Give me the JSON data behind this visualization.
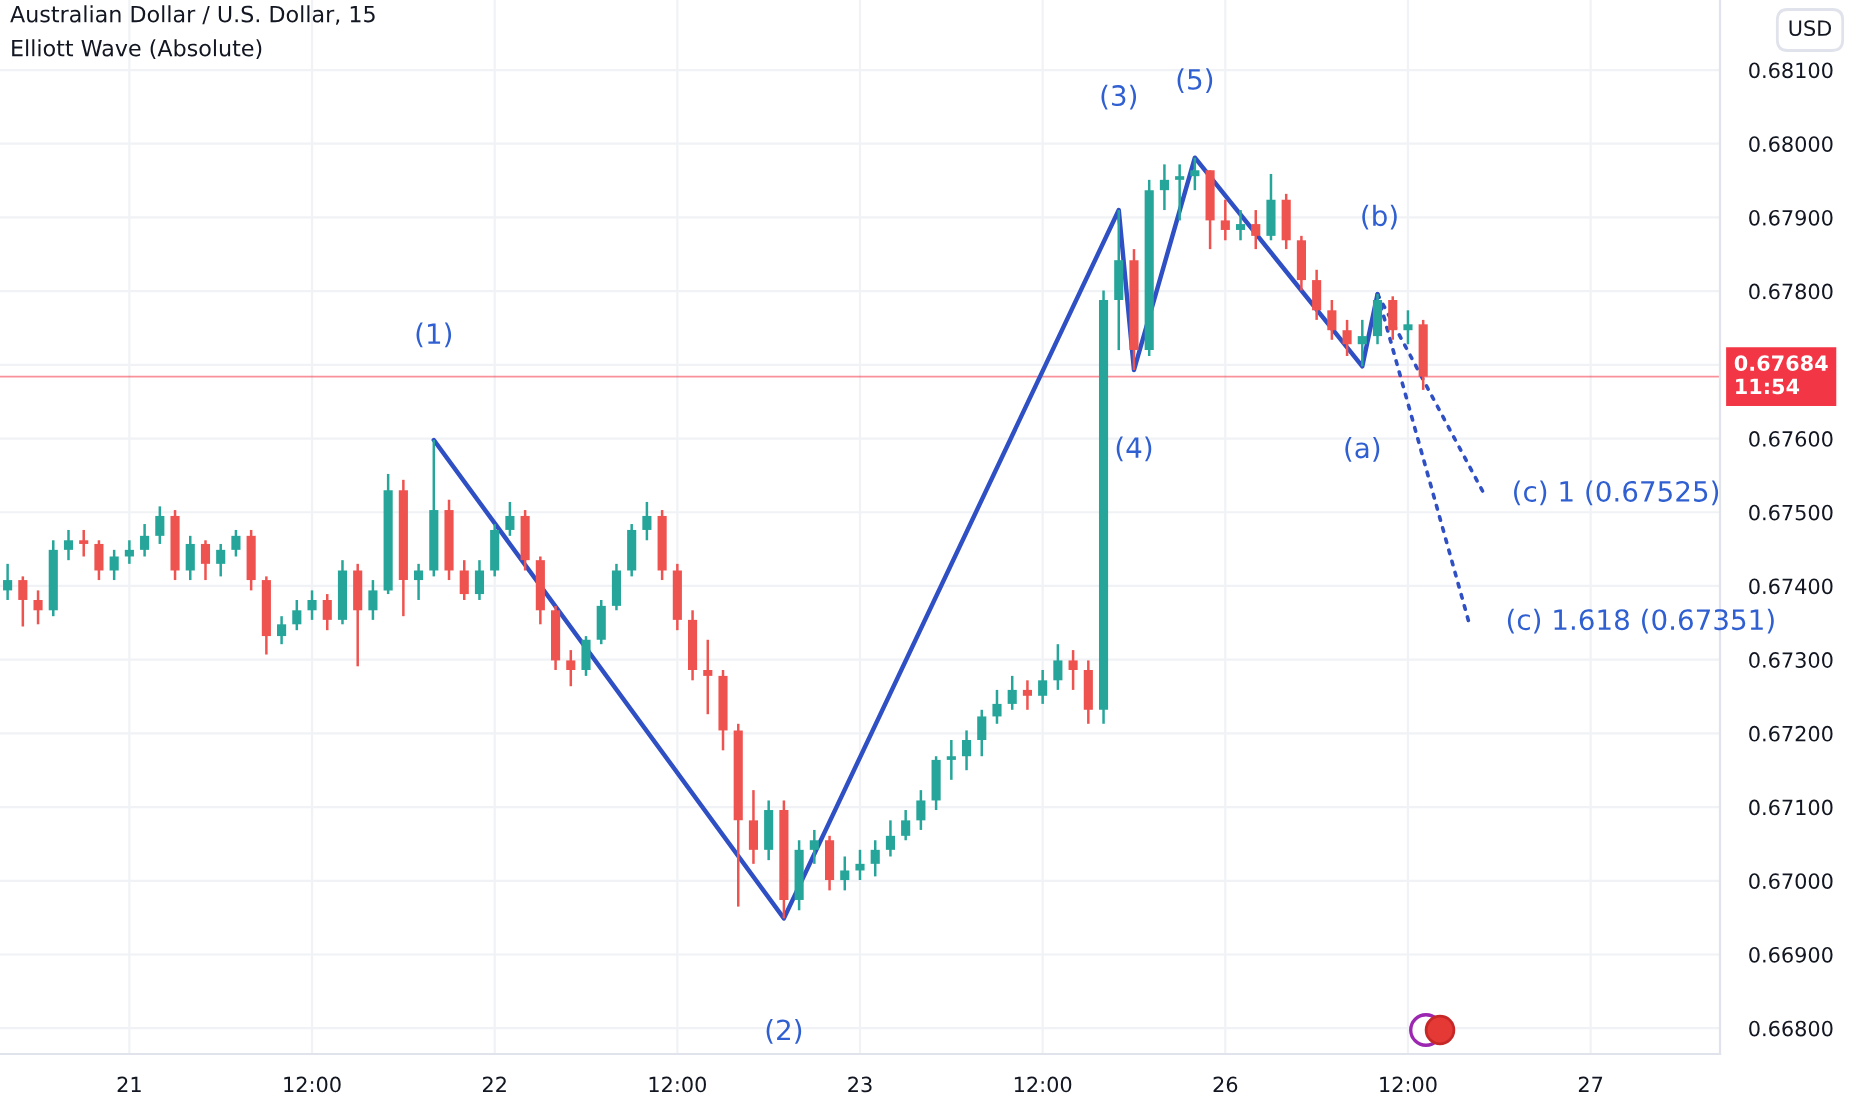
{
  "chart_data": {
    "type": "candlestick",
    "title": "Australian Dollar / U.S. Dollar, 15",
    "subtitle": "Elliott Wave (Absolute)",
    "ylabel": "USD",
    "categories": [
      null,
      null,
      null,
      null,
      null,
      null,
      null,
      null,
      "21",
      null,
      null,
      null,
      null,
      null,
      null,
      null,
      null,
      null,
      null,
      null,
      "12:00",
      null,
      null,
      null,
      null,
      null,
      null,
      null,
      null,
      null,
      null,
      null,
      "22",
      null,
      null,
      null,
      null,
      null,
      null,
      null,
      null,
      null,
      null,
      null,
      "12:00",
      null,
      null,
      null,
      null,
      null,
      null,
      null,
      null,
      null,
      null,
      null,
      "23",
      null,
      null,
      null,
      null,
      null,
      null,
      null,
      null,
      null,
      null,
      null,
      "12:00",
      null,
      null,
      null,
      null,
      null,
      null,
      null,
      null,
      null,
      null,
      null,
      "26",
      null,
      null,
      null,
      null,
      null,
      null,
      null,
      null,
      null,
      null,
      null,
      "12:00",
      null,
      null,
      null,
      null,
      null,
      null,
      null,
      null,
      null,
      null,
      null,
      "27",
      null,
      null,
      null,
      null,
      null,
      null,
      null,
      null
    ],
    "ohlc": [
      [
        0.67394,
        0.6743,
        0.67381,
        0.67408
      ],
      [
        0.67408,
        0.67413,
        0.67345,
        0.67381
      ],
      [
        0.67381,
        0.67394,
        0.67348,
        0.67367
      ],
      [
        0.67367,
        0.67462,
        0.67359,
        0.67449
      ],
      [
        0.67449,
        0.67476,
        0.67435,
        0.67462
      ],
      [
        0.67462,
        0.67476,
        0.6744,
        0.67457
      ],
      [
        0.67457,
        0.67462,
        0.67408,
        0.67421
      ],
      [
        0.67421,
        0.67449,
        0.67408,
        0.6744
      ],
      [
        0.6744,
        0.67462,
        0.6743,
        0.67449
      ],
      [
        0.67449,
        0.67484,
        0.6744,
        0.67468
      ],
      [
        0.67468,
        0.67508,
        0.67457,
        0.67495
      ],
      [
        0.67495,
        0.67503,
        0.67408,
        0.67421
      ],
      [
        0.67421,
        0.67468,
        0.67408,
        0.67457
      ],
      [
        0.67457,
        0.67462,
        0.67408,
        0.6743
      ],
      [
        0.6743,
        0.67457,
        0.67413,
        0.67449
      ],
      [
        0.67449,
        0.67476,
        0.6744,
        0.67468
      ],
      [
        0.67468,
        0.67476,
        0.67394,
        0.67408
      ],
      [
        0.67408,
        0.67413,
        0.67307,
        0.67332
      ],
      [
        0.67332,
        0.67359,
        0.67321,
        0.67348
      ],
      [
        0.67348,
        0.67381,
        0.6734,
        0.67367
      ],
      [
        0.67367,
        0.67394,
        0.67354,
        0.67381
      ],
      [
        0.67381,
        0.67389,
        0.6734,
        0.67354
      ],
      [
        0.67354,
        0.67435,
        0.67348,
        0.67421
      ],
      [
        0.67421,
        0.6743,
        0.67291,
        0.67367
      ],
      [
        0.67367,
        0.67408,
        0.67354,
        0.67394
      ],
      [
        0.67394,
        0.67552,
        0.67389,
        0.6753
      ],
      [
        0.6753,
        0.67544,
        0.67359,
        0.67408
      ],
      [
        0.67408,
        0.6743,
        0.67381,
        0.67421
      ],
      [
        0.67421,
        0.67598,
        0.67413,
        0.67503
      ],
      [
        0.67503,
        0.67517,
        0.67408,
        0.67421
      ],
      [
        0.67421,
        0.67435,
        0.67381,
        0.67389
      ],
      [
        0.67389,
        0.67435,
        0.67381,
        0.67421
      ],
      [
        0.67421,
        0.67484,
        0.67413,
        0.67476
      ],
      [
        0.67476,
        0.67514,
        0.67468,
        0.67495
      ],
      [
        0.67495,
        0.67503,
        0.67421,
        0.67435
      ],
      [
        0.67435,
        0.6744,
        0.67348,
        0.67367
      ],
      [
        0.67367,
        0.67373,
        0.67286,
        0.67299
      ],
      [
        0.67299,
        0.67313,
        0.67264,
        0.67286
      ],
      [
        0.67286,
        0.67332,
        0.67278,
        0.67327
      ],
      [
        0.67327,
        0.67381,
        0.67321,
        0.67373
      ],
      [
        0.67373,
        0.6743,
        0.67367,
        0.67421
      ],
      [
        0.67421,
        0.67484,
        0.67413,
        0.67476
      ],
      [
        0.67476,
        0.67514,
        0.67462,
        0.67495
      ],
      [
        0.67495,
        0.67503,
        0.67408,
        0.67421
      ],
      [
        0.67421,
        0.6743,
        0.6734,
        0.67354
      ],
      [
        0.67354,
        0.67367,
        0.67272,
        0.67286
      ],
      [
        0.67286,
        0.67327,
        0.67226,
        0.67278
      ],
      [
        0.67278,
        0.67286,
        0.67177,
        0.67204
      ],
      [
        0.67204,
        0.67213,
        0.66965,
        0.67082
      ],
      [
        0.67082,
        0.67123,
        0.67023,
        0.67042
      ],
      [
        0.67042,
        0.67109,
        0.67028,
        0.67096
      ],
      [
        0.67096,
        0.67109,
        0.66949,
        0.66974
      ],
      [
        0.66974,
        0.67055,
        0.6696,
        0.67042
      ],
      [
        0.67042,
        0.67069,
        0.67023,
        0.67055
      ],
      [
        0.67055,
        0.67061,
        0.66987,
        0.67001
      ],
      [
        0.67001,
        0.67033,
        0.66987,
        0.67014
      ],
      [
        0.67014,
        0.67042,
        0.67001,
        0.67023
      ],
      [
        0.67023,
        0.67055,
        0.67006,
        0.67042
      ],
      [
        0.67042,
        0.67082,
        0.67033,
        0.67061
      ],
      [
        0.67061,
        0.67096,
        0.67055,
        0.67082
      ],
      [
        0.67082,
        0.67123,
        0.67069,
        0.67109
      ],
      [
        0.67109,
        0.67169,
        0.67096,
        0.67164
      ],
      [
        0.67164,
        0.67191,
        0.67137,
        0.67169
      ],
      [
        0.67169,
        0.67204,
        0.6715,
        0.67191
      ],
      [
        0.67191,
        0.67232,
        0.67169,
        0.67223
      ],
      [
        0.67223,
        0.67259,
        0.67213,
        0.6724
      ],
      [
        0.6724,
        0.67278,
        0.67232,
        0.67259
      ],
      [
        0.67259,
        0.67272,
        0.67232,
        0.67251
      ],
      [
        0.67251,
        0.67286,
        0.6724,
        0.67272
      ],
      [
        0.67272,
        0.67321,
        0.67259,
        0.67299
      ],
      [
        0.67299,
        0.67313,
        0.67259,
        0.67286
      ],
      [
        0.67286,
        0.67299,
        0.67213,
        0.67232
      ],
      [
        0.67232,
        0.67801,
        0.67213,
        0.67788
      ],
      [
        0.67788,
        0.6791,
        0.6772,
        0.67842
      ],
      [
        0.67842,
        0.67857,
        0.67693,
        0.6772
      ],
      [
        0.6772,
        0.67951,
        0.67712,
        0.67937
      ],
      [
        0.67937,
        0.67972,
        0.6791,
        0.67951
      ],
      [
        0.67951,
        0.67972,
        0.67896,
        0.67956
      ],
      [
        0.67956,
        0.67981,
        0.67937,
        0.67964
      ],
      [
        0.67964,
        0.67964,
        0.67857,
        0.67896
      ],
      [
        0.67896,
        0.67924,
        0.67869,
        0.67883
      ],
      [
        0.67883,
        0.6791,
        0.67869,
        0.67891
      ],
      [
        0.67891,
        0.6791,
        0.67857,
        0.67875
      ],
      [
        0.67875,
        0.67959,
        0.67869,
        0.67924
      ],
      [
        0.67924,
        0.67932,
        0.67857,
        0.67869
      ],
      [
        0.67869,
        0.67875,
        0.67801,
        0.67815
      ],
      [
        0.67815,
        0.67829,
        0.67761,
        0.67774
      ],
      [
        0.67774,
        0.67788,
        0.67734,
        0.67747
      ],
      [
        0.67747,
        0.67761,
        0.67712,
        0.67728
      ],
      [
        0.67728,
        0.67761,
        0.67698,
        0.67739
      ],
      [
        0.67739,
        0.67796,
        0.67728,
        0.67788
      ],
      [
        0.67788,
        0.67793,
        0.67734,
        0.67747
      ],
      [
        0.67747,
        0.67774,
        0.67728,
        0.67755
      ],
      [
        0.67755,
        0.67761,
        0.67666,
        0.67684
      ],
      null,
      null,
      null,
      null,
      null,
      null,
      null,
      null,
      null,
      null,
      null,
      null,
      null,
      null,
      null,
      null,
      null,
      null,
      null
    ],
    "series": [
      {
        "type": "line",
        "color": "#2f4fc4",
        "line_style": "solid",
        "values": [
          null,
          null,
          null,
          null,
          null,
          null,
          null,
          null,
          null,
          null,
          null,
          null,
          null,
          null,
          null,
          null,
          null,
          null,
          null,
          null,
          null,
          null,
          null,
          null,
          null,
          null,
          null,
          null,
          0.67598,
          null,
          null,
          null,
          null,
          null,
          null,
          null,
          null,
          null,
          null,
          null,
          null,
          null,
          null,
          null,
          null,
          null,
          null,
          null,
          null,
          null,
          null,
          0.66949,
          null,
          null,
          null,
          null,
          null,
          null,
          null,
          null,
          null,
          null,
          null,
          null,
          null,
          null,
          null,
          null,
          null,
          null,
          null,
          null,
          null,
          0.6791,
          0.67693,
          null,
          null,
          null,
          0.67981,
          null,
          null,
          null,
          null,
          null,
          null,
          null,
          null,
          null,
          null,
          0.67698,
          0.67796,
          null,
          null,
          null,
          null,
          null,
          null,
          null,
          null,
          null,
          null,
          null,
          null,
          null,
          null,
          null,
          null,
          null,
          null,
          null,
          null,
          null,
          null
        ]
      },
      {
        "type": "line",
        "color": "#2f4fc4",
        "line_style": "dotted",
        "values": [
          null,
          null,
          null,
          null,
          null,
          null,
          null,
          null,
          null,
          null,
          null,
          null,
          null,
          null,
          null,
          null,
          null,
          null,
          null,
          null,
          null,
          null,
          null,
          null,
          null,
          null,
          null,
          null,
          null,
          null,
          null,
          null,
          null,
          null,
          null,
          null,
          null,
          null,
          null,
          null,
          null,
          null,
          null,
          null,
          null,
          null,
          null,
          null,
          null,
          null,
          null,
          null,
          null,
          null,
          null,
          null,
          null,
          null,
          null,
          null,
          null,
          null,
          null,
          null,
          null,
          null,
          null,
          null,
          null,
          null,
          null,
          null,
          null,
          null,
          null,
          null,
          null,
          null,
          null,
          null,
          null,
          null,
          null,
          null,
          null,
          null,
          null,
          null,
          null,
          null,
          0.67796,
          null,
          null,
          null,
          null,
          null,
          null,
          0.67525,
          null,
          null,
          null,
          null,
          null,
          null,
          null,
          null,
          null,
          null,
          null,
          null,
          null,
          null,
          null
        ]
      },
      {
        "type": "line",
        "color": "#2f4fc4",
        "line_style": "dotted",
        "values": [
          null,
          null,
          null,
          null,
          null,
          null,
          null,
          null,
          null,
          null,
          null,
          null,
          null,
          null,
          null,
          null,
          null,
          null,
          null,
          null,
          null,
          null,
          null,
          null,
          null,
          null,
          null,
          null,
          null,
          null,
          null,
          null,
          null,
          null,
          null,
          null,
          null,
          null,
          null,
          null,
          null,
          null,
          null,
          null,
          null,
          null,
          null,
          null,
          null,
          null,
          null,
          null,
          null,
          null,
          null,
          null,
          null,
          null,
          null,
          null,
          null,
          null,
          null,
          null,
          null,
          null,
          null,
          null,
          null,
          null,
          null,
          null,
          null,
          null,
          null,
          null,
          null,
          null,
          null,
          null,
          null,
          null,
          null,
          null,
          null,
          null,
          null,
          null,
          null,
          null,
          0.67796,
          null,
          null,
          null,
          null,
          null,
          0.67351,
          null,
          null,
          null,
          null,
          null,
          null,
          null,
          null,
          null,
          null,
          null,
          null,
          null,
          null,
          null,
          null
        ]
      }
    ],
    "annotations": [
      "(1)",
      "(2)",
      "(3)",
      "(4)",
      "(5)",
      "(a)",
      "(b)",
      "(c) 1 (0.67525)",
      "(c) 1.618 (0.67351)"
    ],
    "ref_lines": [
      {
        "axis": "y",
        "value": 0.67684,
        "label": "0.67684\n11:54",
        "color": "#f23645"
      }
    ],
    "ylim": [
      0.66765,
      0.68195
    ],
    "yticks": [
      {
        "value": 0.668,
        "label": "0.66800"
      },
      {
        "value": 0.669,
        "label": "0.66900"
      },
      {
        "value": 0.67,
        "label": "0.67000"
      },
      {
        "value": 0.671,
        "label": "0.67100"
      },
      {
        "value": 0.672,
        "label": "0.67200"
      },
      {
        "value": 0.673,
        "label": "0.67300"
      },
      {
        "value": 0.674,
        "label": "0.67400"
      },
      {
        "value": 0.675,
        "label": "0.67500"
      },
      {
        "value": 0.676,
        "label": "0.67600"
      },
      {
        "value": 0.677,
        "label": null
      },
      {
        "value": 0.678,
        "label": "0.67800"
      },
      {
        "value": 0.679,
        "label": "0.67900"
      },
      {
        "value": 0.68,
        "label": "0.68000"
      },
      {
        "value": 0.681,
        "label": "0.68100"
      }
    ],
    "grid": true
  }
}
